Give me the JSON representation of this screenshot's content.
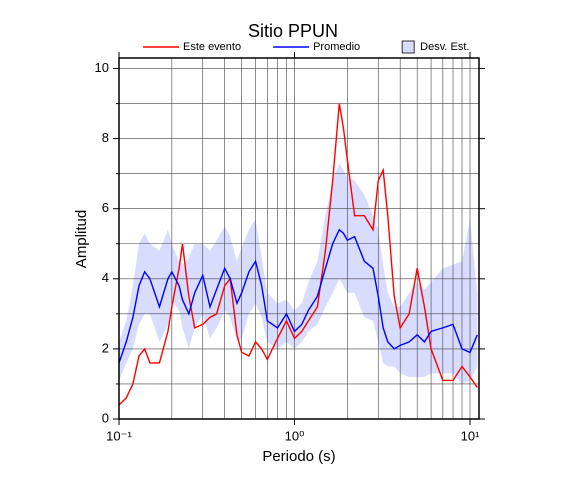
{
  "chart_data": {
    "type": "line",
    "title": "Sitio PPUN",
    "xlabel": "Periodo (s)",
    "ylabel": "Amplitud",
    "xscale": "log",
    "grid": true,
    "legend": "top",
    "x": [
      0.1,
      0.11,
      0.12,
      0.13,
      0.14,
      0.15,
      0.17,
      0.19,
      0.2,
      0.22,
      0.23,
      0.25,
      0.27,
      0.3,
      0.33,
      0.36,
      0.4,
      0.43,
      0.47,
      0.5,
      0.55,
      0.6,
      0.65,
      0.7,
      0.8,
      0.9,
      1.0,
      1.1,
      1.2,
      1.35,
      1.5,
      1.65,
      1.8,
      1.9,
      2.0,
      2.2,
      2.5,
      2.8,
      3.0,
      3.2,
      3.4,
      3.7,
      4.0,
      4.5,
      5.0,
      5.5,
      6.0,
      7.0,
      8.0,
      9.0,
      10,
      11
    ],
    "series": [
      {
        "name": "Este evento",
        "color": "#ff0000",
        "values": [
          0.4,
          0.6,
          1.0,
          1.8,
          2.0,
          1.6,
          1.6,
          2.5,
          3.2,
          4.3,
          5.0,
          3.5,
          2.6,
          2.7,
          2.9,
          3.0,
          3.8,
          4.0,
          2.4,
          1.9,
          1.8,
          2.2,
          2.0,
          1.7,
          2.3,
          2.8,
          2.3,
          2.5,
          2.8,
          3.2,
          4.8,
          6.8,
          9.0,
          8.3,
          7.4,
          5.8,
          5.8,
          5.4,
          6.8,
          7.1,
          5.8,
          3.5,
          2.6,
          3.0,
          4.3,
          3.2,
          2.0,
          1.1,
          1.1,
          1.5,
          1.2,
          0.9
        ]
      },
      {
        "name": "Promedio",
        "color": "#0000ff",
        "values": [
          1.6,
          2.2,
          2.9,
          3.8,
          4.2,
          4.0,
          3.2,
          4.0,
          4.2,
          3.8,
          3.4,
          3.0,
          3.6,
          4.1,
          3.2,
          3.7,
          4.3,
          4.0,
          3.3,
          3.6,
          4.2,
          4.5,
          3.8,
          2.8,
          2.6,
          3.0,
          2.5,
          2.7,
          3.1,
          3.5,
          4.3,
          5.0,
          5.4,
          5.3,
          5.1,
          5.2,
          4.5,
          4.3,
          3.5,
          2.6,
          2.2,
          2.0,
          2.1,
          2.2,
          2.4,
          2.2,
          2.5,
          2.6,
          2.7,
          2.0,
          1.9,
          2.4
        ]
      }
    ],
    "band": {
      "name": "Desv. Est.",
      "color": "#d8dcff",
      "lower": [
        1.1,
        1.6,
        2.0,
        2.7,
        3.0,
        3.0,
        2.2,
        2.7,
        3.4,
        3.1,
        2.6,
        2.0,
        2.6,
        3.0,
        2.3,
        2.6,
        3.1,
        2.9,
        2.2,
        2.3,
        3.0,
        3.3,
        2.9,
        2.2,
        2.0,
        2.2,
        2.0,
        2.2,
        2.5,
        2.7,
        3.2,
        3.6,
        4.0,
        3.8,
        3.6,
        3.6,
        2.9,
        2.8,
        2.2,
        1.6,
        1.5,
        1.5,
        1.3,
        1.2,
        1.2,
        1.2,
        1.3,
        1.3,
        1.3,
        1.0,
        1.1,
        1.5
      ],
      "upper": [
        2.2,
        2.8,
        3.8,
        5.0,
        5.3,
        5.0,
        4.8,
        5.4,
        5.0,
        4.5,
        4.4,
        4.6,
        5.0,
        5.0,
        4.8,
        5.1,
        5.5,
        5.2,
        4.5,
        4.9,
        5.4,
        5.7,
        4.6,
        3.6,
        3.3,
        3.4,
        3.1,
        3.3,
        3.9,
        4.5,
        5.8,
        6.8,
        7.3,
        7.1,
        6.9,
        6.8,
        6.4,
        5.8,
        5.4,
        4.4,
        3.6,
        3.2,
        3.2,
        3.6,
        3.9,
        3.7,
        3.9,
        4.3,
        4.4,
        4.5,
        5.7,
        3.6
      ]
    },
    "xlim": [
      0.1,
      11.25
    ],
    "ylim": [
      0,
      10.3
    ],
    "xticks": [
      {
        "value": 0.1,
        "label": "10⁻¹"
      },
      {
        "value": 1,
        "label": "10⁰"
      },
      {
        "value": 10,
        "label": "10¹"
      }
    ],
    "yticks": [
      0,
      2,
      4,
      6,
      8,
      10
    ],
    "yminorticks": [
      1,
      3,
      5,
      7,
      9
    ]
  }
}
